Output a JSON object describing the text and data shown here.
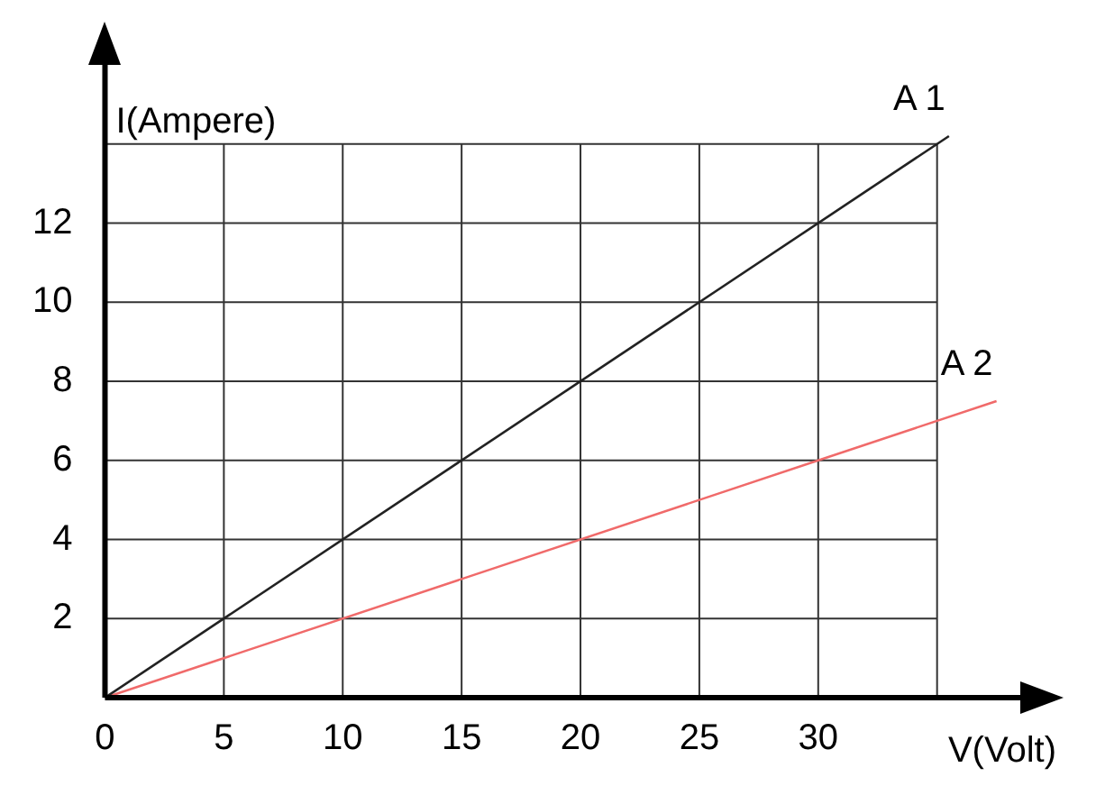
{
  "chart_data": {
    "type": "line",
    "xlabel": "V(Volt)",
    "ylabel": "I(Ampere)",
    "series": [
      {
        "name": "A 1",
        "color": "#222222",
        "x": [
          0,
          35.5
        ],
        "values": [
          0,
          14.2
        ]
      },
      {
        "name": "A 2",
        "color": "#f06a6a",
        "x": [
          0,
          37.5
        ],
        "values": [
          0,
          7.5
        ]
      }
    ],
    "xlim": [
      0,
      38.5
    ],
    "xticks": [
      0,
      5,
      10,
      15,
      20,
      25,
      30,
      {
        "value": 35,
        "label": null
      }
    ],
    "ylim": [
      0,
      16
    ],
    "yticks": [
      {
        "value": 0,
        "label": null
      },
      2,
      4,
      6,
      8,
      10,
      12,
      {
        "value": 14,
        "label": null
      }
    ],
    "grid": true,
    "legend": false,
    "marker": "none",
    "line_style": "solid"
  }
}
